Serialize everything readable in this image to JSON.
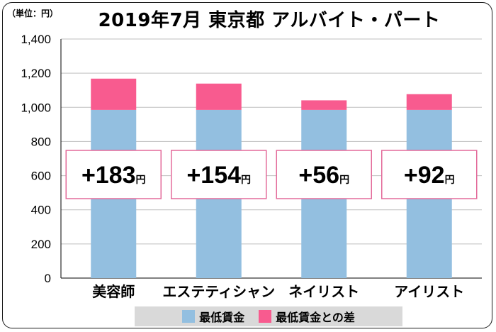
{
  "chart_data": {
    "type": "bar",
    "stacked": true,
    "unit_label": "（単位：円）",
    "title": "2019年7月 東京都 アルバイト・パート",
    "categories": [
      "美容師",
      "エステティシャン",
      "ネイリスト",
      "アイリスト"
    ],
    "series": [
      {
        "name": "最低賃金",
        "color": "#93bfe0",
        "values": [
          985,
          985,
          985,
          985
        ]
      },
      {
        "name": "最低賃金との差",
        "color": "#f85b8f",
        "values": [
          183,
          154,
          56,
          92
        ]
      }
    ],
    "annotations": [
      "+183",
      "+154",
      "+56",
      "+92"
    ],
    "annotation_unit": "円",
    "ylim": [
      0,
      1400
    ],
    "yticks": [
      0,
      200,
      400,
      600,
      800,
      1000,
      1200,
      1400
    ],
    "ytick_labels": [
      "0",
      "200",
      "400",
      "600",
      "800",
      "1,000",
      "1,200",
      "1,400"
    ],
    "grid": true,
    "legend_position": "bottom",
    "xlabel": "",
    "ylabel": ""
  }
}
